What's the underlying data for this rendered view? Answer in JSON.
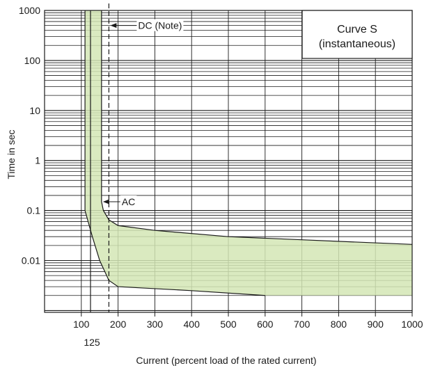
{
  "chart_data": {
    "type": "area",
    "title": "Curve S",
    "subtitle": "(instantaneous)",
    "xlabel": "Current (percent load of the rated current)",
    "ylabel": "Time in sec",
    "x_scale": "linear",
    "y_scale": "log",
    "xlim": [
      0,
      1000
    ],
    "ylim": [
      0.001,
      1000
    ],
    "x_ticks": [
      100,
      200,
      300,
      400,
      500,
      600,
      700,
      800,
      900,
      1000
    ],
    "x_tick_labels": [
      "100",
      "200",
      "300",
      "400",
      "500",
      "600",
      "700",
      "800",
      "900",
      "1000"
    ],
    "x_extra_tick": {
      "value": 125,
      "label": "125"
    },
    "y_ticks": [
      0.01,
      0.1,
      1,
      10,
      100,
      1000
    ],
    "y_tick_labels": [
      "0.01",
      "0.1",
      "1",
      "10",
      "100",
      "1000"
    ],
    "grid": true,
    "fill_color": "#d4e6b5",
    "series": [
      {
        "role": "upper-boundary",
        "x": [
          155,
          155,
          160,
          175,
          200,
          300,
          500,
          700,
          1000
        ],
        "y": [
          1000,
          0.15,
          0.1,
          0.065,
          0.05,
          0.04,
          0.03,
          0.026,
          0.021
        ]
      },
      {
        "role": "lower-boundary",
        "x": [
          110,
          110,
          130,
          150,
          175,
          200,
          400,
          600
        ],
        "y": [
          1000,
          0.1,
          0.03,
          0.01,
          0.004,
          0.003,
          0.0025,
          0.002
        ]
      }
    ],
    "vertical_lines": [
      {
        "x": 125,
        "style": "solid"
      },
      {
        "x": 175,
        "style": "dashed"
      }
    ],
    "annotations": [
      {
        "text": "DC (Note)",
        "x": 175,
        "y": 500
      },
      {
        "text": "AC",
        "x": 155,
        "y": 0.15
      }
    ],
    "legend_placement": "top-right"
  }
}
